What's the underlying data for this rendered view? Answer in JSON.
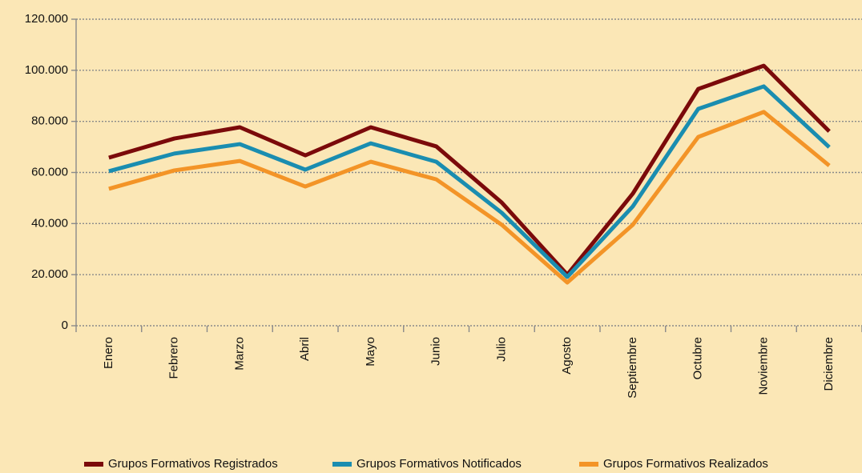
{
  "chart_data": {
    "type": "line",
    "categories": [
      "Enero",
      "Febrero",
      "Marzo",
      "Abril",
      "Mayo",
      "Junio",
      "Julio",
      "Agosto",
      "Septiembre",
      "Octubre",
      "Noviembre",
      "Diciembre"
    ],
    "series": [
      {
        "name": "Grupos Formativos Registrados",
        "color": "#7b0a0a",
        "values": [
          65800,
          73300,
          77700,
          66700,
          77700,
          70200,
          48200,
          20000,
          51700,
          92700,
          101800,
          76100
        ]
      },
      {
        "name": "Grupos Formativos Notificados",
        "color": "#1a8db0",
        "values": [
          60500,
          67400,
          71100,
          61100,
          71400,
          64200,
          44200,
          19100,
          46700,
          84900,
          93700,
          69900
        ]
      },
      {
        "name": "Grupos Formativos Realizados",
        "color": "#f39427",
        "values": [
          53600,
          60800,
          64500,
          54500,
          64200,
          57300,
          39500,
          16900,
          39500,
          73900,
          83700,
          62700
        ]
      }
    ],
    "ylim": [
      0,
      120000
    ],
    "yticks": [
      0,
      {
        "value": 20000,
        "label": "20.000"
      },
      {
        "value": 40000,
        "label": "40.000"
      },
      {
        "value": 60000,
        "label": "60.000"
      },
      {
        "value": 80000,
        "label": "80.000"
      },
      {
        "value": 100000,
        "label": "100.000"
      },
      {
        "value": 120000,
        "label": "120.000"
      }
    ],
    "grid": true
  }
}
